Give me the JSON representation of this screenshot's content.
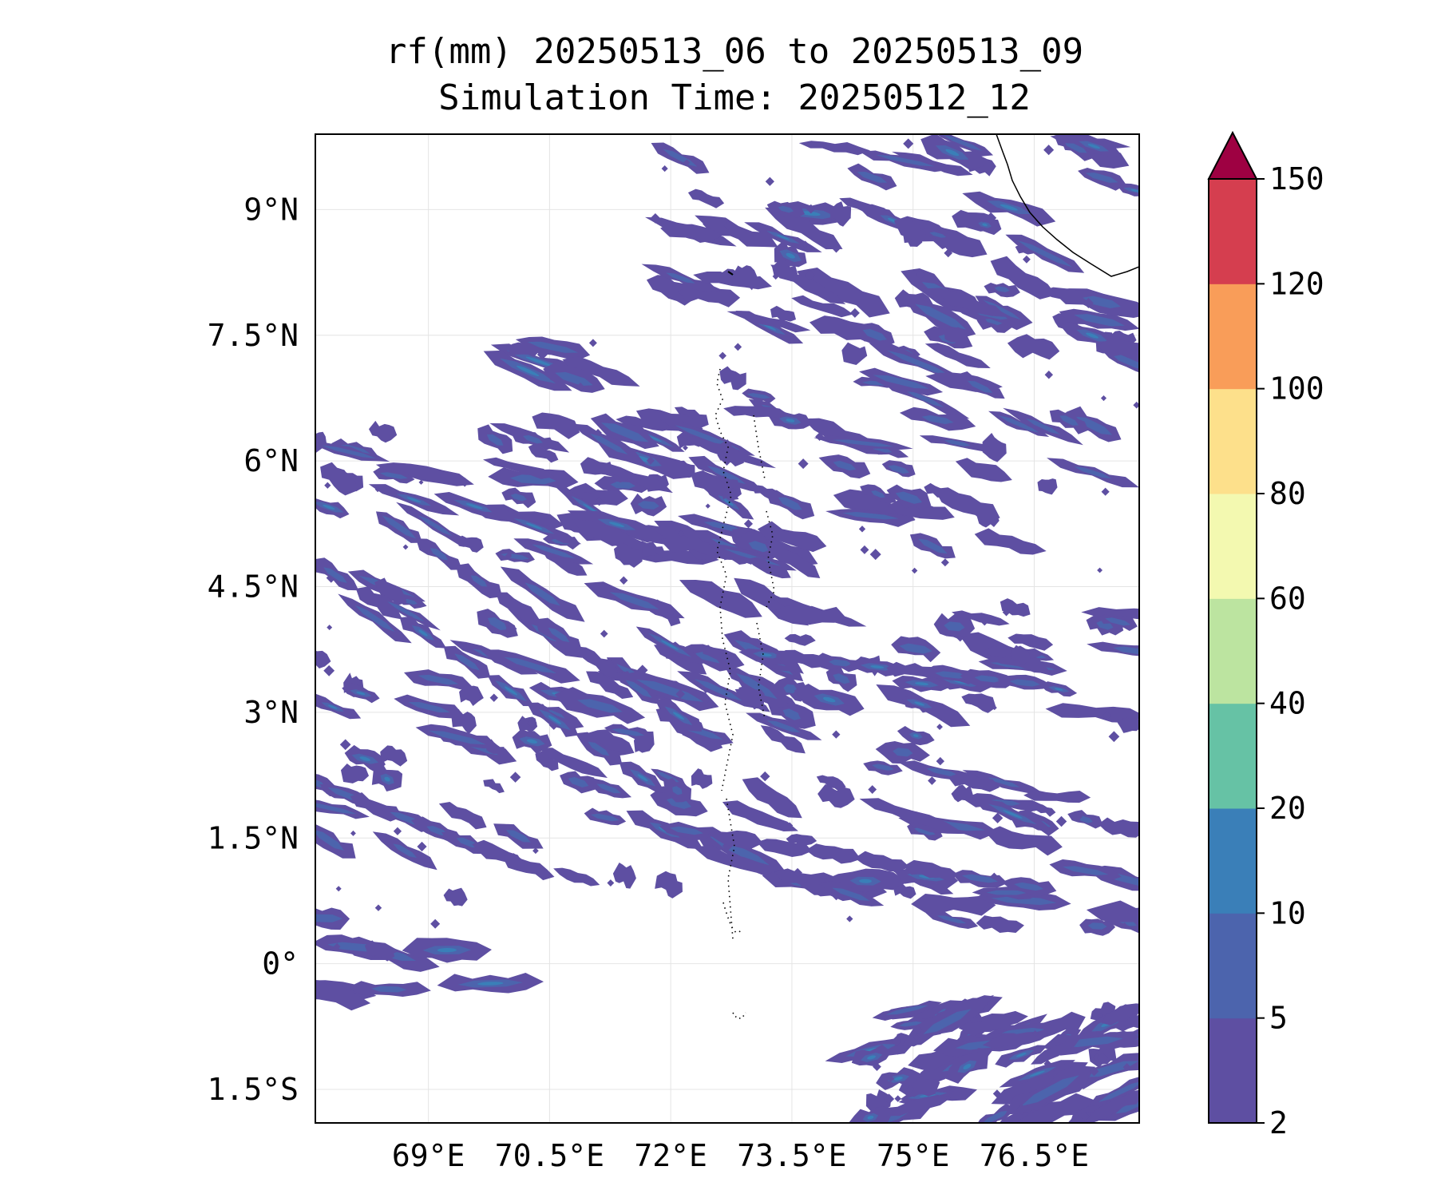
{
  "title_line1": "rf(mm) 20250513_06 to 20250513_09",
  "title_line2": "Simulation Time: 20250512_12",
  "map": {
    "lon_range": [
      67.6,
      77.8
    ],
    "lat_range": [
      -1.9,
      9.9
    ],
    "lon_ticks": [
      {
        "value": 69.0,
        "label": "69°E"
      },
      {
        "value": 70.5,
        "label": "70.5°E"
      },
      {
        "value": 72.0,
        "label": "72°E"
      },
      {
        "value": 73.5,
        "label": "73.5°E"
      },
      {
        "value": 75.0,
        "label": "75°E"
      },
      {
        "value": 76.5,
        "label": "76.5°E"
      }
    ],
    "lat_ticks": [
      {
        "value": 9.0,
        "label": "9°N"
      },
      {
        "value": 7.5,
        "label": "7.5°N"
      },
      {
        "value": 6.0,
        "label": "6°N"
      },
      {
        "value": 4.5,
        "label": "4.5°N"
      },
      {
        "value": 3.0,
        "label": "3°N"
      },
      {
        "value": 1.5,
        "label": "1.5°N"
      },
      {
        "value": 0.0,
        "label": "0°"
      },
      {
        "value": -1.5,
        "label": "1.5°S"
      }
    ],
    "gridlines": true,
    "colors": {
      "level_2_5": "#5e4fa2",
      "level_5_10": "#4c64ad",
      "level_10_20": "#3a7fb8",
      "level_20_40": "#66c2a5",
      "land_line": "#000000"
    }
  },
  "colorbar": {
    "levels": [
      "2",
      "5",
      "10",
      "20",
      "40",
      "60",
      "80",
      "100",
      "120",
      "150"
    ],
    "colors": [
      "#5e4fa2",
      "#4c64ad",
      "#3a7fb8",
      "#66c2a5",
      "#bce4a0",
      "#f3f9b0",
      "#fde08b",
      "#f99d59",
      "#d53e4f"
    ],
    "extend_color": "#9e0142"
  }
}
